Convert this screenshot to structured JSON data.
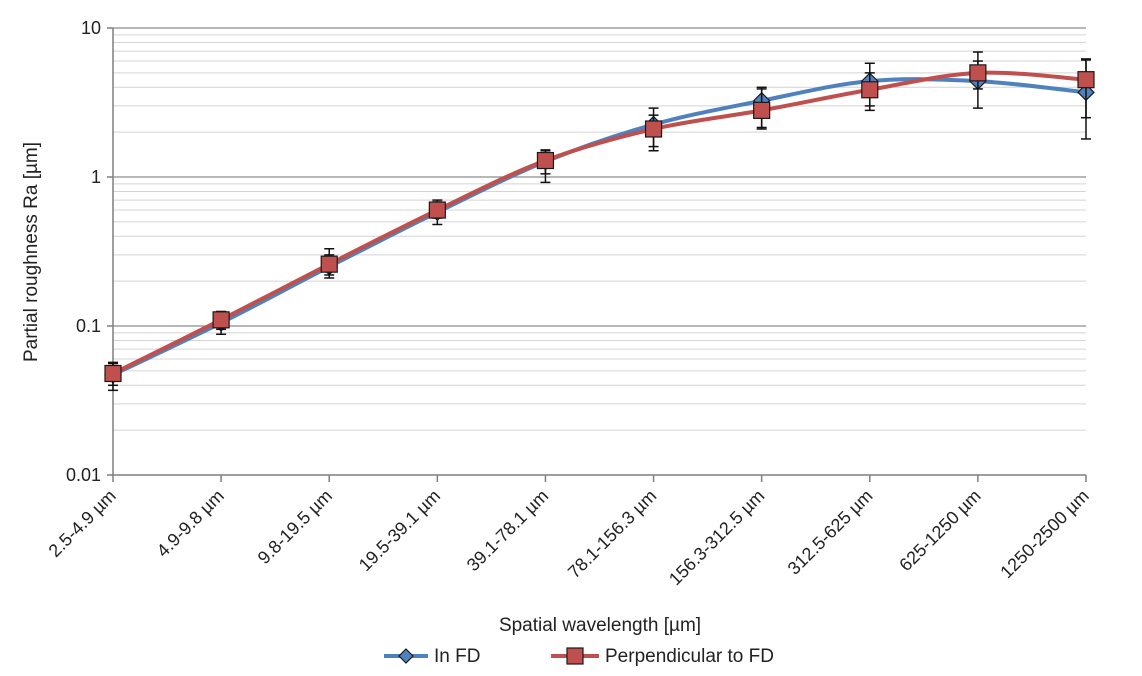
{
  "chart_data": {
    "type": "line",
    "title": "",
    "xlabel": "Spatial wavelength [µm]",
    "ylabel": "Partial roughness Ra [µm]",
    "y_scale": "log",
    "ylim": [
      0.01,
      10
    ],
    "y_ticks": [
      "0.01",
      "0.1",
      "1",
      "10"
    ],
    "grid": "horizontal major and minor",
    "legend_position": "bottom",
    "categories": [
      "2.5-4.9 µm",
      "4.9-9.8 µm",
      "9.8-19.5 µm",
      "19.5-39.1 µm",
      "39.1-78.1 µm",
      "78.1-156.3 µm",
      "156.3-312.5 µm",
      "312.5-625 µm",
      "625-1250 µm",
      "1250-2500 µm"
    ],
    "series": [
      {
        "name": "In FD",
        "color": "#4F81BD",
        "marker": "diamond",
        "values": [
          0.047,
          0.105,
          0.25,
          0.58,
          1.27,
          2.25,
          3.25,
          4.4,
          4.4,
          3.7
        ],
        "err_low": [
          0.037,
          0.088,
          0.21,
          0.48,
          0.92,
          1.5,
          2.15,
          3.0,
          2.9,
          1.8
        ],
        "err_high": [
          0.057,
          0.125,
          0.3,
          0.68,
          1.52,
          2.9,
          4.0,
          5.8,
          6.0,
          6.1
        ]
      },
      {
        "name": "Perpendicular to FD",
        "color": "#C0504D",
        "marker": "square",
        "values": [
          0.048,
          0.11,
          0.26,
          0.6,
          1.29,
          2.1,
          2.8,
          3.85,
          5.0,
          4.5
        ],
        "err_low": [
          0.04,
          0.095,
          0.22,
          0.53,
          1.05,
          1.6,
          2.1,
          2.8,
          3.9,
          2.5
        ],
        "err_high": [
          0.056,
          0.125,
          0.33,
          0.7,
          1.5,
          2.6,
          3.9,
          5.0,
          6.9,
          6.2
        ]
      }
    ]
  }
}
